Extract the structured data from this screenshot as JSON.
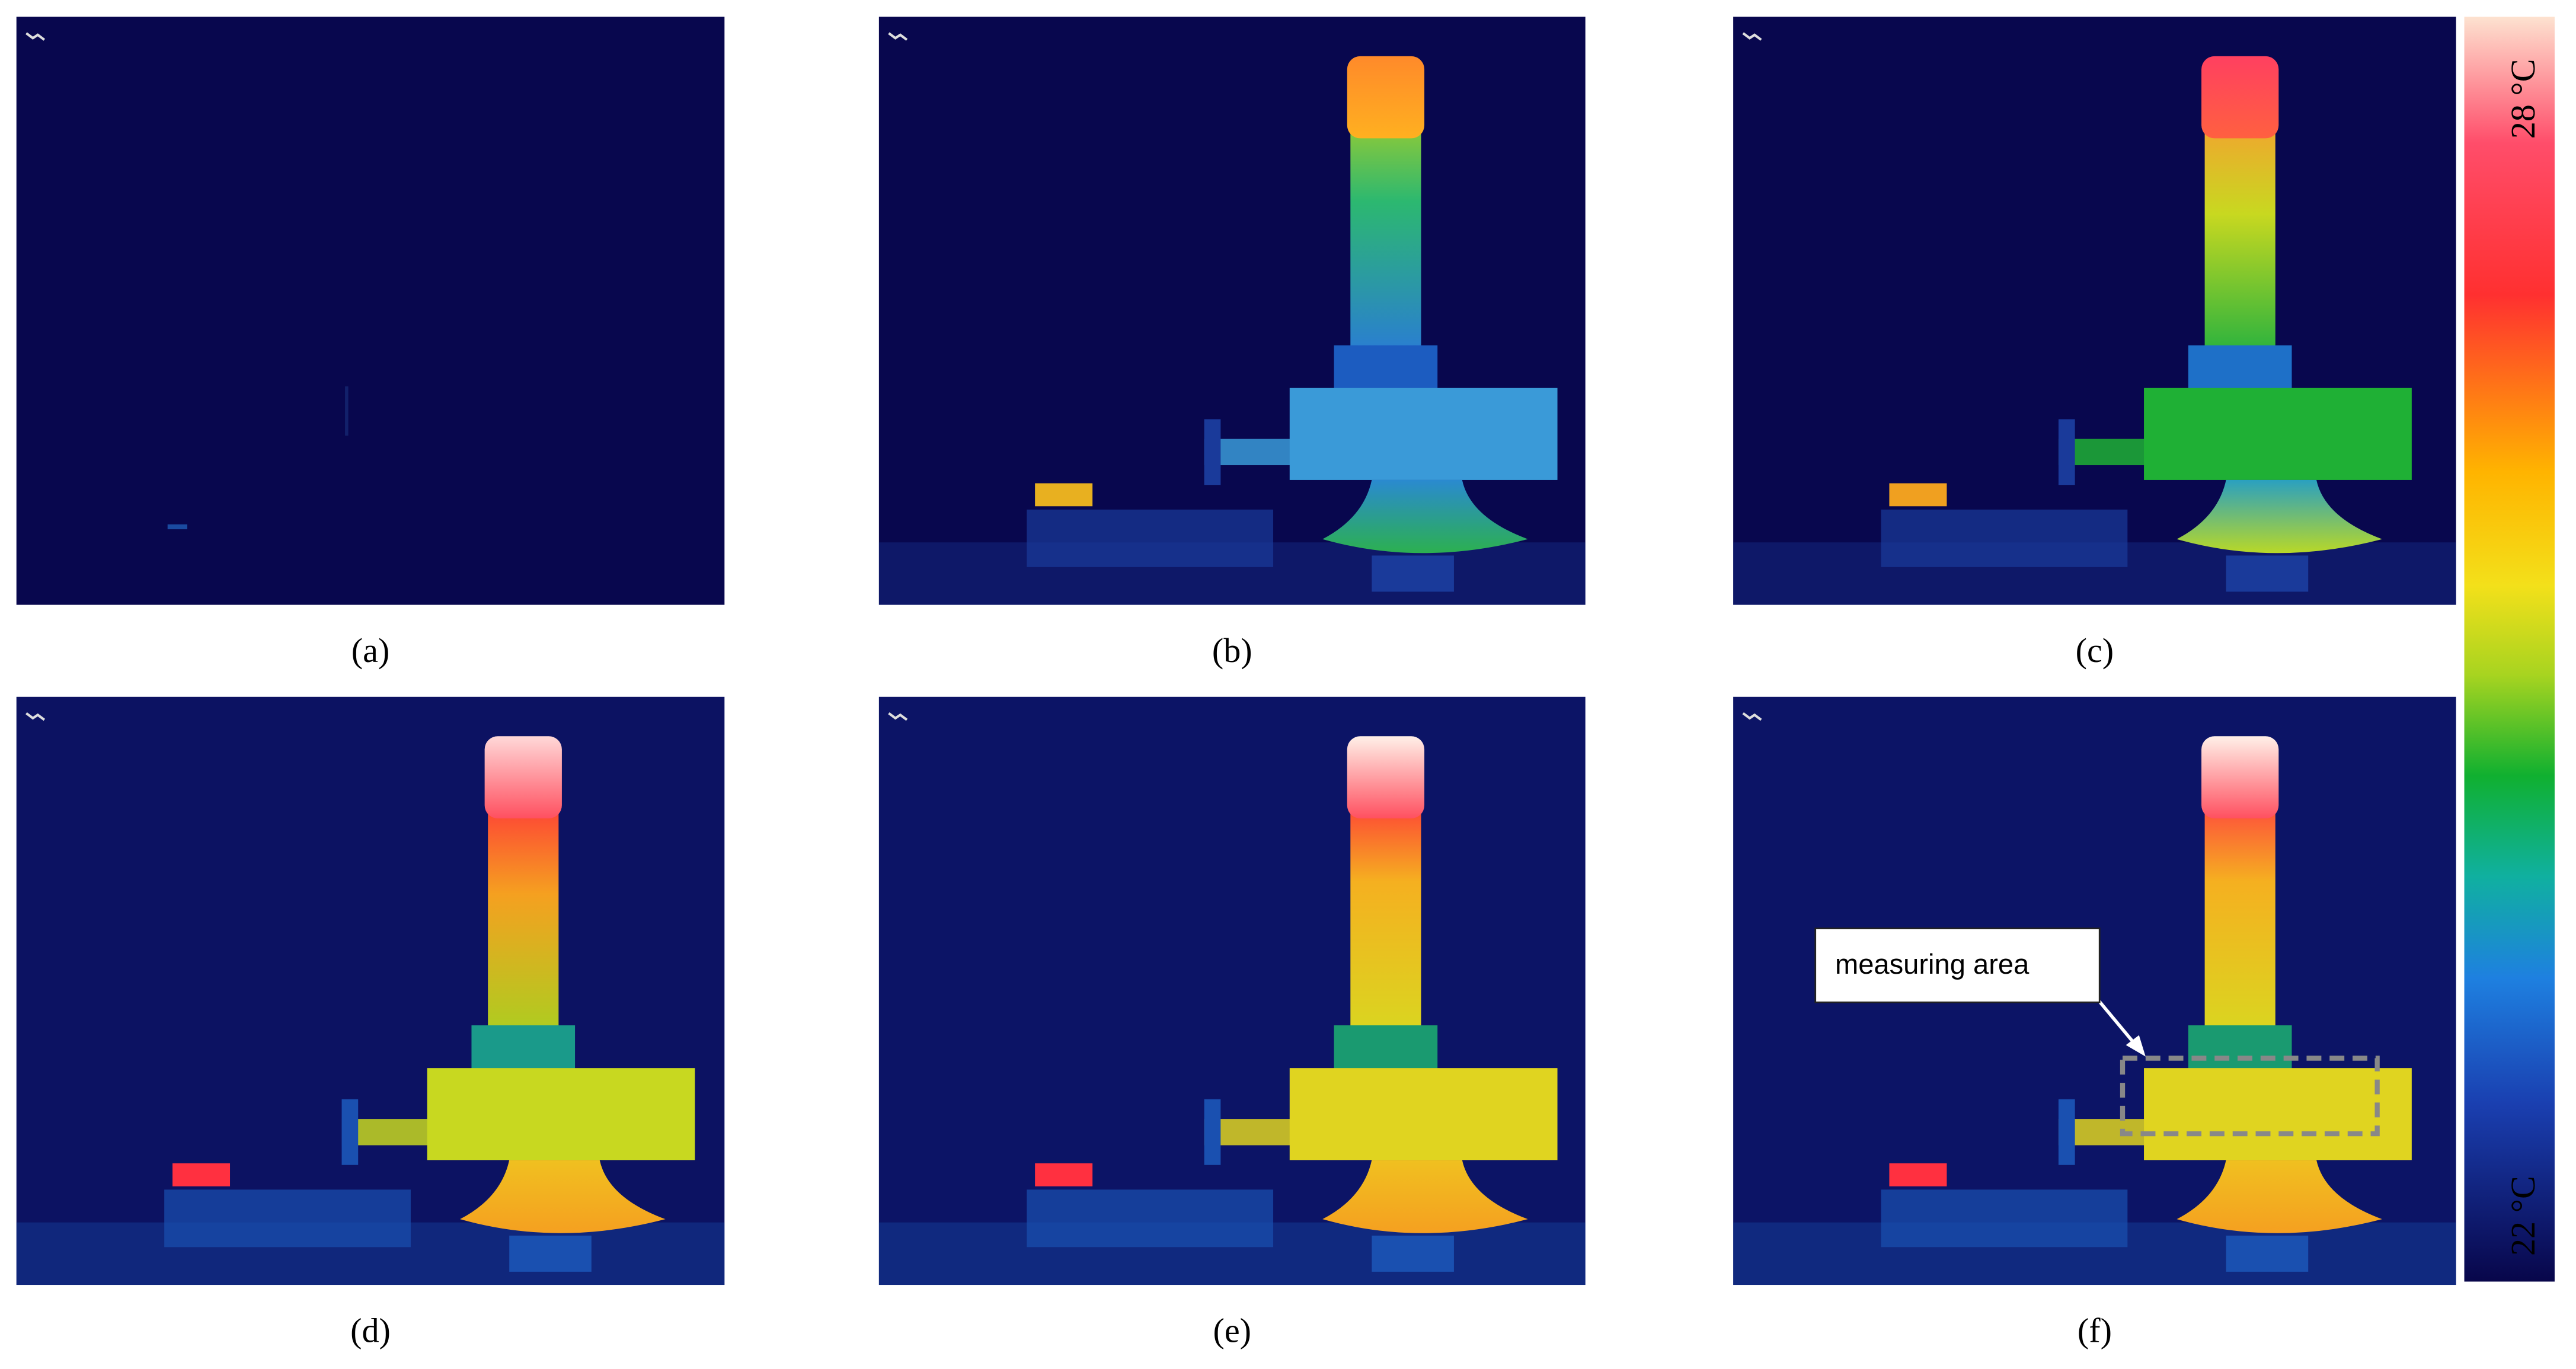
{
  "panels": [
    {
      "label": "(a)"
    },
    {
      "label": "(b)"
    },
    {
      "label": "(c)"
    },
    {
      "label": "(d)"
    },
    {
      "label": "(e)"
    },
    {
      "label": "(f)"
    }
  ],
  "colorbar": {
    "max_label": "28 °C",
    "min_label": "22 °C"
  },
  "annotation": "measuring area"
}
